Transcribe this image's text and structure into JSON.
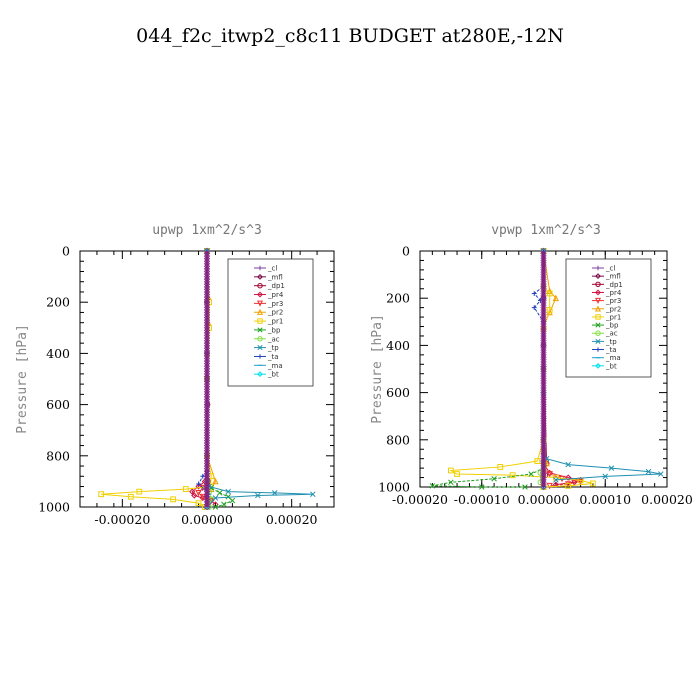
{
  "title": "044_f2c_itwp2_c8c11  BUDGET at280E,-12N",
  "chart_data": [
    {
      "type": "line",
      "subtitle": "upwp   1xm^2/s^3",
      "ylabel": "Pressure [hPa]",
      "xlim": [
        -0.0003,
        0.0003
      ],
      "ylim": [
        1000,
        0
      ],
      "xticks": [
        -0.0002,
        0.0,
        0.0002
      ],
      "xtick_labels": [
        "-0.00020",
        "0.00000",
        "0.00020"
      ],
      "yticks": [
        0,
        200,
        400,
        600,
        800,
        1000
      ],
      "ytick_labels": [
        "0",
        "200",
        "400",
        "600",
        "800",
        "1000"
      ],
      "legend": "top-right",
      "series": [
        {
          "name": "_cl",
          "color": "#7b3fa0",
          "marker": "plus",
          "x": [
            0,
            0,
            0,
            0,
            0,
            0
          ],
          "y": [
            0,
            200,
            400,
            600,
            800,
            1000
          ]
        },
        {
          "name": "_mfl",
          "color": "#7b0a4a",
          "marker": "diamond",
          "x": [
            0,
            0,
            0,
            0,
            0,
            0
          ],
          "y": [
            0,
            200,
            400,
            600,
            800,
            1000
          ]
        },
        {
          "name": "_dp1",
          "color": "#a00030",
          "marker": "circle",
          "x": [
            0,
            0,
            0,
            1e-06,
            0,
            2e-06,
            0
          ],
          "y": [
            0,
            200,
            400,
            600,
            800,
            900,
            1000
          ]
        },
        {
          "name": "_pr4",
          "color": "#d01040",
          "marker": "diamond",
          "x": [
            0,
            0,
            0,
            -5e-06,
            -2e-05,
            -3.5e-05,
            -3e-05,
            -1e-05,
            1e-05,
            2e-05
          ],
          "y": [
            0,
            500,
            880,
            900,
            920,
            940,
            955,
            965,
            975,
            990
          ]
        },
        {
          "name": "_pr3",
          "color": "#f03030",
          "marker": "triangle-down",
          "x": [
            0,
            0,
            0,
            -1e-05,
            -2e-05,
            -1e-05,
            1e-05,
            5e-06
          ],
          "y": [
            0,
            500,
            900,
            925,
            945,
            960,
            975,
            990
          ]
        },
        {
          "name": "_pr2",
          "color": "#f0a000",
          "marker": "triangle-up",
          "x": [
            0,
            3e-06,
            3e-06,
            0,
            0,
            2e-05,
            1e-05,
            0
          ],
          "y": [
            0,
            180,
            280,
            400,
            800,
            900,
            930,
            960
          ]
        },
        {
          "name": "_pr1",
          "color": "#f0d000",
          "marker": "square",
          "x": [
            0,
            5e-06,
            5e-06,
            0,
            0,
            1e-05,
            8e-06,
            -5e-05,
            -0.00016,
            -0.00025,
            -0.00018,
            -8e-05,
            -2e-05,
            -5e-06
          ],
          "y": [
            0,
            200,
            300,
            500,
            800,
            880,
            920,
            930,
            940,
            950,
            960,
            970,
            985,
            1000
          ]
        },
        {
          "name": "_bp",
          "color": "#20a020",
          "marker": "x",
          "x": [
            0,
            0,
            0,
            1e-05,
            3e-05,
            5e-05,
            6e-05,
            4e-05,
            2e-05
          ],
          "y": [
            0,
            500,
            900,
            925,
            945,
            960,
            975,
            990,
            1000
          ]
        },
        {
          "name": "_ac",
          "color": "#80e040",
          "marker": "circle",
          "x": [
            0,
            0,
            0,
            5e-06,
            1e-05,
            5e-06
          ],
          "y": [
            0,
            500,
            900,
            940,
            970,
            1000
          ]
        },
        {
          "name": "_tp",
          "color": "#2090b0",
          "marker": "x",
          "x": [
            0,
            0,
            0,
            5e-06,
            5e-05,
            0.00016,
            0.00025,
            0.00012,
            2e-05,
            0
          ],
          "y": [
            0,
            500,
            880,
            920,
            940,
            945,
            950,
            955,
            965,
            1000
          ]
        },
        {
          "name": "_ta",
          "color": "#2040c0",
          "marker": "plus",
          "x": [
            0,
            0,
            0,
            -1e-05,
            -2e-05,
            -5e-06,
            0
          ],
          "y": [
            0,
            500,
            860,
            880,
            910,
            930,
            960
          ]
        },
        {
          "name": "_ma",
          "color": "#20a0d0",
          "marker": "dash",
          "x": [
            0,
            0,
            0,
            5e-06,
            0,
            0
          ],
          "y": [
            0,
            500,
            900,
            950,
            980,
            1000
          ]
        },
        {
          "name": "_bt",
          "color": "#00e0f0",
          "marker": "diamond",
          "x": [
            0,
            0,
            0,
            0,
            0,
            0
          ],
          "y": [
            0,
            200,
            400,
            600,
            800,
            1000
          ]
        }
      ]
    },
    {
      "type": "line",
      "subtitle": "vpwp   1xm^2/s^3",
      "ylabel": "Pressure [hPa]",
      "xlim": [
        -0.0002,
        0.0002
      ],
      "ylim": [
        1000,
        0
      ],
      "xticks": [
        -0.0002,
        -0.0001,
        0.0,
        0.0001,
        0.0002
      ],
      "xtick_labels": [
        "-0.00020",
        "-0.00010",
        "0.00000",
        "0.00010",
        "0.00020"
      ],
      "yticks": [
        0,
        200,
        400,
        600,
        800,
        1000
      ],
      "ytick_labels": [
        "0",
        "200",
        "400",
        "600",
        "800",
        "1000"
      ],
      "legend": "top-right",
      "series": [
        {
          "name": "_cl",
          "color": "#7b3fa0",
          "marker": "plus",
          "x": [
            0,
            0,
            0,
            0,
            0,
            0
          ],
          "y": [
            0,
            200,
            400,
            600,
            800,
            1000
          ]
        },
        {
          "name": "_mfl",
          "color": "#7b0a4a",
          "marker": "diamond",
          "x": [
            0,
            0,
            0,
            0,
            0,
            0
          ],
          "y": [
            0,
            200,
            400,
            600,
            800,
            1000
          ]
        },
        {
          "name": "_dp1",
          "color": "#a00030",
          "marker": "circle",
          "x": [
            0,
            0,
            0,
            5e-06,
            3e-06,
            0
          ],
          "y": [
            0,
            200,
            400,
            900,
            950,
            1000
          ]
        },
        {
          "name": "_pr4",
          "color": "#d01040",
          "marker": "diamond",
          "x": [
            0,
            0,
            0,
            1e-05,
            4e-05,
            6e-05,
            5e-05,
            2e-05
          ],
          "y": [
            0,
            500,
            900,
            940,
            960,
            970,
            980,
            990
          ]
        },
        {
          "name": "_pr3",
          "color": "#f03030",
          "marker": "triangle-down",
          "x": [
            0,
            0,
            0,
            1e-05,
            3e-05,
            6e-05,
            4e-05,
            1e-05
          ],
          "y": [
            0,
            500,
            900,
            945,
            965,
            978,
            988,
            995
          ]
        },
        {
          "name": "_pr2",
          "color": "#f0a000",
          "marker": "triangle-up",
          "x": [
            0,
            1e-05,
            2e-05,
            1e-05,
            0,
            0,
            5e-06,
            0
          ],
          "y": [
            0,
            170,
            200,
            260,
            320,
            800,
            900,
            1000
          ]
        },
        {
          "name": "_pr1",
          "color": "#f0d000",
          "marker": "square",
          "x": [
            0,
            0,
            1e-05,
            1e-05,
            0,
            0,
            -1e-05,
            -7e-05,
            -0.00015,
            -0.00014,
            -5e-05,
            2e-05,
            6e-05,
            8e-05,
            4e-05,
            0
          ],
          "y": [
            0,
            150,
            180,
            250,
            330,
            800,
            890,
            915,
            930,
            945,
            950,
            960,
            972,
            985,
            995,
            1000
          ]
        },
        {
          "name": "_bp",
          "color": "#20a020",
          "marker": "x",
          "x": [
            0,
            0,
            0,
            -2e-05,
            -8e-05,
            -0.00015,
            -0.00018,
            -0.0001,
            -3e-05
          ],
          "y": [
            0,
            500,
            920,
            945,
            965,
            980,
            995,
            1000,
            1000
          ]
        },
        {
          "name": "_ac",
          "color": "#80e040",
          "marker": "circle",
          "x": [
            0,
            0,
            0,
            -5e-06,
            -5e-06,
            0
          ],
          "y": [
            0,
            500,
            900,
            940,
            980,
            1000
          ]
        },
        {
          "name": "_tp",
          "color": "#2090b0",
          "marker": "x",
          "x": [
            0,
            0,
            0,
            5e-06,
            4e-05,
            0.00011,
            0.00017,
            0.00019,
            0.0001,
            2e-05
          ],
          "y": [
            0,
            500,
            850,
            880,
            905,
            920,
            935,
            945,
            955,
            970
          ]
        },
        {
          "name": "_ta",
          "color": "#2040c0",
          "marker": "plus",
          "x": [
            0,
            0,
            -1.5e-05,
            -5e-06,
            -1.5e-05,
            0,
            0,
            0
          ],
          "y": [
            0,
            150,
            180,
            210,
            240,
            300,
            800,
            1000
          ]
        },
        {
          "name": "_ma",
          "color": "#20a0d0",
          "marker": "dash",
          "x": [
            0,
            0,
            0,
            0,
            0,
            0
          ],
          "y": [
            0,
            200,
            400,
            600,
            800,
            1000
          ]
        },
        {
          "name": "_bt",
          "color": "#00e0f0",
          "marker": "diamond",
          "x": [
            0,
            0,
            0,
            0,
            0,
            0
          ],
          "y": [
            0,
            200,
            400,
            600,
            800,
            1000
          ]
        }
      ]
    }
  ]
}
